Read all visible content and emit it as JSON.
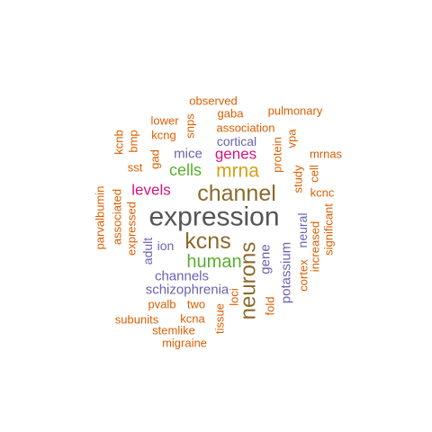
{
  "word_cloud": {
    "words": [
      {
        "text": "expression",
        "color": "#555555"
      },
      {
        "text": "channel",
        "color": "#8B6A2B"
      },
      {
        "text": "kcns",
        "color": "#8B6A2B"
      },
      {
        "text": "neurons",
        "color": "#8B6A2B"
      },
      {
        "text": "mrna",
        "color": "#D4A017"
      },
      {
        "text": "human",
        "color": "#5AAE2E"
      },
      {
        "text": "cells",
        "color": "#5AAE2E"
      },
      {
        "text": "genes",
        "color": "#D6157A"
      },
      {
        "text": "levels",
        "color": "#D6157A"
      },
      {
        "text": "mice",
        "color": "#6B63AE"
      },
      {
        "text": "cortical",
        "color": "#6B63AE"
      },
      {
        "text": "schizophrenia",
        "color": "#6B63AE"
      },
      {
        "text": "channels",
        "color": "#6B63AE"
      },
      {
        "text": "ion",
        "color": "#6B63AE"
      },
      {
        "text": "adult",
        "color": "#6B63AE"
      },
      {
        "text": "gene",
        "color": "#6B63AE"
      },
      {
        "text": "potassium",
        "color": "#6B63AE"
      },
      {
        "text": "neural",
        "color": "#6B63AE"
      },
      {
        "text": "observed",
        "color": "#D95F02"
      },
      {
        "text": "gaba",
        "color": "#D95F02"
      },
      {
        "text": "pulmonary",
        "color": "#D95F02"
      },
      {
        "text": "association",
        "color": "#D95F02"
      },
      {
        "text": "lower",
        "color": "#D95F02"
      },
      {
        "text": "snps",
        "color": "#D95F02"
      },
      {
        "text": "kcnb",
        "color": "#D95F02"
      },
      {
        "text": "bmp",
        "color": "#D95F02"
      },
      {
        "text": "kcng",
        "color": "#D95F02"
      },
      {
        "text": "vpa",
        "color": "#D95F02"
      },
      {
        "text": "mrnas",
        "color": "#D95F02"
      },
      {
        "text": "sst",
        "color": "#D95F02"
      },
      {
        "text": "gad",
        "color": "#D95F02"
      },
      {
        "text": "protein",
        "color": "#D95F02"
      },
      {
        "text": "cell",
        "color": "#D95F02"
      },
      {
        "text": "study",
        "color": "#D95F02"
      },
      {
        "text": "kcnc",
        "color": "#D95F02"
      },
      {
        "text": "parvalbumin",
        "color": "#D95F02"
      },
      {
        "text": "associated",
        "color": "#D95F02"
      },
      {
        "text": "expressed",
        "color": "#D95F02"
      },
      {
        "text": "significant",
        "color": "#D95F02"
      },
      {
        "text": "increased",
        "color": "#D95F02"
      },
      {
        "text": "cortex",
        "color": "#D95F02"
      },
      {
        "text": "fold",
        "color": "#D95F02"
      },
      {
        "text": "loci",
        "color": "#D95F02"
      },
      {
        "text": "tissue",
        "color": "#D95F02"
      },
      {
        "text": "pvalb",
        "color": "#D95F02"
      },
      {
        "text": "two",
        "color": "#D95F02"
      },
      {
        "text": "subunits",
        "color": "#D95F02"
      },
      {
        "text": "kcna",
        "color": "#D95F02"
      },
      {
        "text": "stemlike",
        "color": "#D95F02"
      },
      {
        "text": "migraine",
        "color": "#D95F02"
      }
    ]
  }
}
